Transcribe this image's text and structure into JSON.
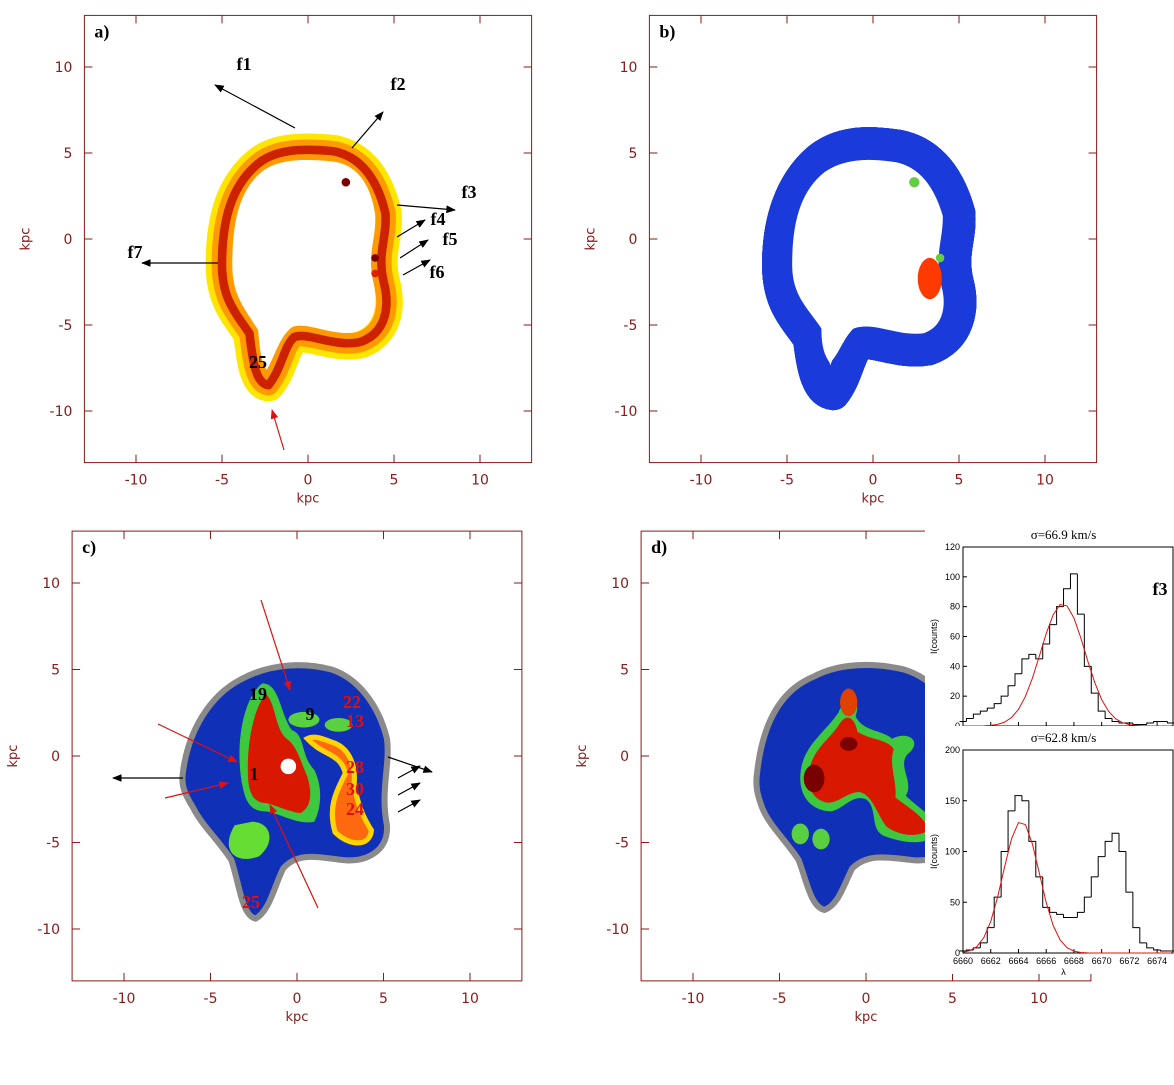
{
  "chart_data": [
    {
      "type": "map",
      "panel_label": "a)",
      "xlabel": "kpc",
      "ylabel": "kpc",
      "xlim": [
        -13,
        13
      ],
      "ylim": [
        -13,
        13
      ],
      "xticks": [
        -10,
        -5,
        0,
        5,
        10
      ],
      "yticks": [
        -10,
        -5,
        0,
        5,
        10
      ],
      "annotations": [
        "f1",
        "f2",
        "f3",
        "f4",
        "f5",
        "f6",
        "f7",
        "25"
      ]
    },
    {
      "type": "map",
      "panel_label": "b)",
      "xlabel": "kpc",
      "ylabel": "kpc",
      "xlim": [
        -13,
        13
      ],
      "ylim": [
        -13,
        13
      ],
      "xticks": [
        -10,
        -5,
        0,
        5,
        10
      ],
      "yticks": [
        -10,
        -5,
        0,
        5,
        10
      ],
      "annotations": []
    },
    {
      "type": "map",
      "panel_label": "c)",
      "xlabel": "kpc",
      "ylabel": "kpc",
      "xlim": [
        -13,
        13
      ],
      "ylim": [
        -13,
        13
      ],
      "xticks": [
        -10,
        -5,
        0,
        5,
        10
      ],
      "yticks": [
        -10,
        -5,
        0,
        5,
        10
      ],
      "annotations": [
        "19",
        "1",
        "9",
        "22",
        "13",
        "28",
        "30",
        "24",
        "25"
      ]
    },
    {
      "type": "map",
      "panel_label": "d)",
      "xlabel": "kpc",
      "ylabel": "kpc",
      "xlim": [
        -13,
        13
      ],
      "ylim": [
        -13,
        13
      ],
      "xticks": [
        -10,
        -5,
        0,
        5,
        10
      ],
      "yticks": [
        -10,
        -5,
        0,
        5,
        10
      ],
      "annotations": []
    },
    {
      "type": "spectrum",
      "title": "σ=66.9 km/s",
      "label": "f3",
      "xlabel": "λ",
      "ylabel": "I(counts)",
      "xlim": [
        6660,
        6675
      ],
      "ylim": [
        0,
        120
      ],
      "xticks": [
        6660,
        6662,
        6664,
        6666,
        6668,
        6670,
        6672,
        6674
      ],
      "yticks": [
        0,
        20,
        40,
        60,
        80,
        100,
        120
      ],
      "x": [
        6660,
        6660.5,
        6661,
        6661.5,
        6662,
        6662.5,
        6663,
        6663.5,
        6664,
        6664.5,
        6665,
        6665.5,
        6666,
        6666.5,
        6667,
        6667.5,
        6668,
        6668.5,
        6669,
        6669.5,
        6670,
        6670.5,
        6671,
        6671.5,
        6672,
        6672.5,
        6673,
        6673.5,
        6674,
        6674.5,
        6675
      ],
      "series": [
        {
          "style": "step",
          "color": "#000000",
          "values": [
            3,
            5,
            8,
            10,
            12,
            15,
            20,
            27,
            35,
            45,
            48,
            45,
            55,
            68,
            80,
            92,
            102,
            75,
            40,
            22,
            10,
            5,
            3,
            2,
            2,
            1,
            1,
            2,
            3,
            3,
            2
          ]
        },
        {
          "style": "line",
          "color": "#e01010",
          "values": [
            0,
            0,
            0,
            0.1,
            0.4,
            1.1,
            2.6,
            5.7,
            11.1,
            19.8,
            31.9,
            46.7,
            61.9,
            74.5,
            81.4,
            80.6,
            72.4,
            58.9,
            43.5,
            29.2,
            17.7,
            9.8,
            4.9,
            2.2,
            0.9,
            0.3,
            0.1,
            0,
            0,
            0,
            0
          ]
        }
      ]
    },
    {
      "type": "spectrum",
      "title": "σ=62.8 km/s",
      "xlabel": "λ",
      "ylabel": "I(counts)",
      "xlim": [
        6660,
        6675
      ],
      "ylim": [
        0,
        200
      ],
      "xticks": [
        6660,
        6662,
        6664,
        6666,
        6668,
        6670,
        6672,
        6674
      ],
      "yticks": [
        0,
        50,
        100,
        150,
        200
      ],
      "x": [
        6660,
        6660.5,
        6661,
        6661.5,
        6662,
        6662.5,
        6663,
        6663.5,
        6664,
        6664.5,
        6665,
        6665.5,
        6666,
        6666.5,
        6667,
        6667.5,
        6668,
        6668.5,
        6669,
        6669.5,
        6670,
        6670.5,
        6671,
        6671.5,
        6672,
        6672.5,
        6673,
        6673.5,
        6674,
        6674.5,
        6675
      ],
      "series": [
        {
          "style": "step",
          "color": "#000000",
          "values": [
            2,
            3,
            5,
            10,
            25,
            55,
            100,
            140,
            155,
            150,
            110,
            75,
            45,
            40,
            38,
            35,
            35,
            40,
            55,
            75,
            95,
            110,
            118,
            100,
            60,
            25,
            10,
            5,
            3,
            2,
            2
          ]
        },
        {
          "style": "line",
          "color": "#e01010",
          "values": [
            0.7,
            2.3,
            6.3,
            15.1,
            31.1,
            55.3,
            84.9,
            112.5,
            128.5,
            126.6,
            107.6,
            78.9,
            49.8,
            27.2,
            12.8,
            5.2,
            1.8,
            0.5,
            0.1,
            0,
            0,
            0,
            0,
            0,
            0,
            0,
            0,
            0,
            0,
            0,
            0
          ]
        }
      ]
    }
  ]
}
